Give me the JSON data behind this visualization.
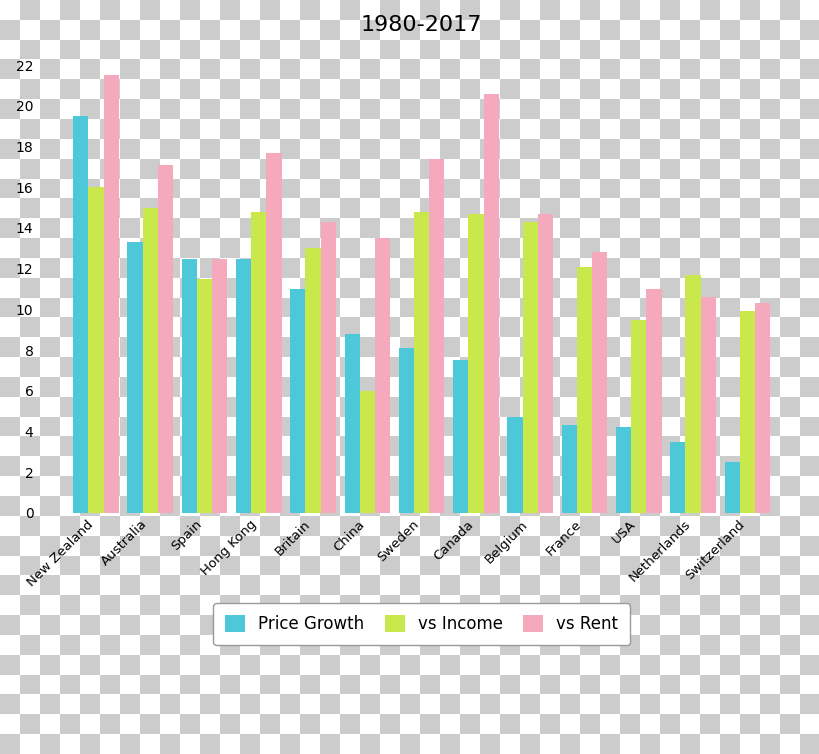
{
  "title": "1980-2017",
  "categories": [
    "New Zealand",
    "Australia",
    "Spain",
    "Hong Kong",
    "Britain",
    "China",
    "Sweden",
    "Canada",
    "Belgium",
    "France",
    "USA",
    "Netherlands",
    "Switzerland"
  ],
  "price_growth": [
    19.5,
    13.3,
    12.5,
    12.5,
    11.0,
    8.8,
    8.1,
    7.5,
    4.7,
    4.3,
    4.2,
    3.5,
    2.5
  ],
  "vs_income": [
    16.0,
    15.0,
    11.5,
    14.8,
    13.0,
    6.0,
    14.8,
    14.7,
    14.3,
    12.1,
    9.5,
    11.7,
    9.9
  ],
  "vs_rent": [
    21.5,
    17.1,
    12.5,
    17.7,
    14.3,
    13.5,
    17.4,
    20.6,
    14.7,
    12.8,
    11.0,
    10.6,
    10.3
  ],
  "color_price": "#4DC8D8",
  "color_income": "#C8E84C",
  "color_rent": "#F4AABC",
  "legend_labels": [
    "Price Growth",
    "vs Income",
    "vs Rent"
  ],
  "ylim": [
    0,
    23
  ],
  "yticks": [
    0,
    2,
    4,
    6,
    8,
    10,
    12,
    14,
    16,
    18,
    20,
    22
  ],
  "title_fontsize": 16,
  "checker_light": "#FFFFFF",
  "checker_dark": "#CCCCCC",
  "checker_size": 20
}
